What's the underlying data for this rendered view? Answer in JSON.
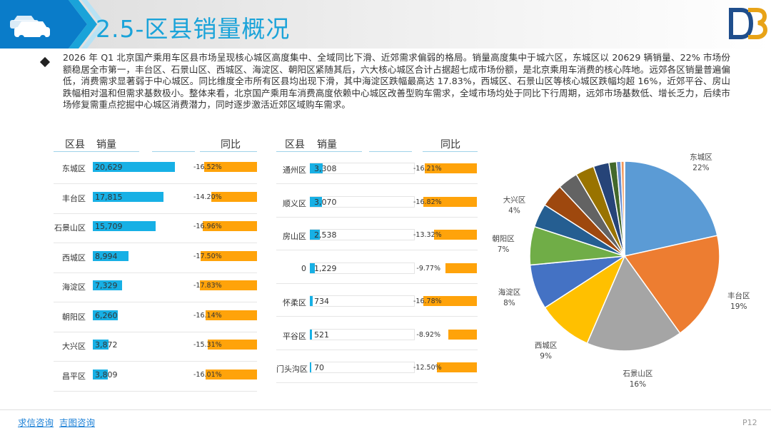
{
  "header": {
    "title": "2.5-区县销量概况",
    "colors": {
      "primary": "#1aa3d9",
      "dark": "#0a7cc9"
    }
  },
  "summary": "2026 年 Q1 北京国产乘用车区县市场呈现核心城区高度集中、全域同比下滑、近郊需求偏弱的格局。销量高度集中于城六区，东城区以 20629 辆销量、22% 市场份额稳居全市第一，丰台区、石景山区、西城区、海淀区、朝阳区紧随其后，六大核心城区合计占据超七成市场份额，是北京乘用车消费的核心阵地。远郊各区销量普遍偏低，消费需求显著弱于中心城区。同比维度全市所有区县均出现下滑，其中海淀区跌幅最高达 17.83%，西城区、石景山区等核心城区跌幅均超 16%，近郊平谷、房山跌幅相对温和但需求基数极小。整体来看，北京国产乘用车消费高度依赖中心城区改善型购车需求，全域市场均处于同比下行周期，远郊市场基数低、增长乏力，后续市场修复需重点挖掘中心城区消费潜力，同时逐步激活近郊区域购车需求。",
  "table_headers": {
    "district": "区县",
    "sales": "销量",
    "yoy": "同比"
  },
  "chart_data": [
    {
      "type": "table",
      "columns": [
        "区县",
        "销量",
        "同比"
      ],
      "rows": [
        {
          "district": "东城区",
          "sales": 20629,
          "sales_label": "20,629",
          "yoy": -16.52,
          "yoy_label": "-16.52%"
        },
        {
          "district": "丰台区",
          "sales": 17815,
          "sales_label": "17,815",
          "yoy": -14.2,
          "yoy_label": "-14.20%"
        },
        {
          "district": "石景山区",
          "sales": 15709,
          "sales_label": "15,709",
          "yoy": -16.96,
          "yoy_label": "-16.96%"
        },
        {
          "district": "西城区",
          "sales": 8994,
          "sales_label": "8,994",
          "yoy": -17.5,
          "yoy_label": "-17.50%"
        },
        {
          "district": "海淀区",
          "sales": 7329,
          "sales_label": "7,329",
          "yoy": -17.83,
          "yoy_label": "-17.83%"
        },
        {
          "district": "朝阳区",
          "sales": 6260,
          "sales_label": "6,260",
          "yoy": -16.14,
          "yoy_label": "-16.14%"
        },
        {
          "district": "大兴区",
          "sales": 3872,
          "sales_label": "3,872",
          "yoy": -15.31,
          "yoy_label": "-15.31%"
        },
        {
          "district": "昌平区",
          "sales": 3809,
          "sales_label": "3,809",
          "yoy": -16.01,
          "yoy_label": "-16.01%"
        }
      ]
    },
    {
      "type": "table",
      "columns": [
        "区县",
        "销量",
        "同比"
      ],
      "rows": [
        {
          "district": "通州区",
          "sales": 3308,
          "sales_label": "3,308",
          "yoy": -16.21,
          "yoy_label": "-16.21%"
        },
        {
          "district": "顺义区",
          "sales": 3070,
          "sales_label": "3,070",
          "yoy": -16.82,
          "yoy_label": "-16.82%"
        },
        {
          "district": "房山区",
          "sales": 2538,
          "sales_label": "2,538",
          "yoy": -13.32,
          "yoy_label": "-13.32%"
        },
        {
          "district": "0",
          "sales": 1229,
          "sales_label": "1,229",
          "yoy": -9.77,
          "yoy_label": "-9.77%"
        },
        {
          "district": "怀柔区",
          "sales": 734,
          "sales_label": "734",
          "yoy": -16.78,
          "yoy_label": "-16.78%"
        },
        {
          "district": "平谷区",
          "sales": 521,
          "sales_label": "521",
          "yoy": -8.92,
          "yoy_label": "-8.92%"
        },
        {
          "district": "门头沟区",
          "sales": 70,
          "sales_label": "70",
          "yoy": -12.5,
          "yoy_label": "-12.50%"
        }
      ]
    },
    {
      "type": "pie",
      "slices": [
        {
          "name": "东城区",
          "value": 20629,
          "pct_label": "22%",
          "color": "#5b9bd5",
          "show_label": true
        },
        {
          "name": "丰台区",
          "value": 17815,
          "pct_label": "19%",
          "color": "#ed7d31",
          "show_label": true
        },
        {
          "name": "石景山区",
          "value": 15709,
          "pct_label": "16%",
          "color": "#a5a5a5",
          "show_label": true
        },
        {
          "name": "西城区",
          "value": 8994,
          "pct_label": "9%",
          "color": "#ffc000",
          "show_label": true
        },
        {
          "name": "海淀区",
          "value": 7329,
          "pct_label": "8%",
          "color": "#4472c4",
          "show_label": true
        },
        {
          "name": "朝阳区",
          "value": 6260,
          "pct_label": "7%",
          "color": "#70ad47",
          "show_label": true
        },
        {
          "name": "大兴区",
          "value": 3872,
          "pct_label": "4%",
          "color": "#255e91",
          "show_label": true
        },
        {
          "name": "昌平区",
          "value": 3809,
          "pct_label": "",
          "color": "#9e480e",
          "show_label": false
        },
        {
          "name": "通州区",
          "value": 3308,
          "pct_label": "",
          "color": "#636363",
          "show_label": false
        },
        {
          "name": "顺义区",
          "value": 3070,
          "pct_label": "",
          "color": "#997300",
          "show_label": false
        },
        {
          "name": "房山区",
          "value": 2538,
          "pct_label": "",
          "color": "#264478",
          "show_label": false
        },
        {
          "name": "0",
          "value": 1229,
          "pct_label": "",
          "color": "#43682b",
          "show_label": false
        },
        {
          "name": "怀柔区",
          "value": 734,
          "pct_label": "",
          "color": "#698ed0",
          "show_label": false
        },
        {
          "name": "平谷区",
          "value": 521,
          "pct_label": "",
          "color": "#f1975a",
          "show_label": false
        },
        {
          "name": "门头沟区",
          "value": 70,
          "pct_label": "",
          "color": "#b7b7b7",
          "show_label": false
        }
      ]
    }
  ],
  "footer": {
    "link1": "求信咨询",
    "link2": "吉图咨询",
    "page": "P12"
  }
}
